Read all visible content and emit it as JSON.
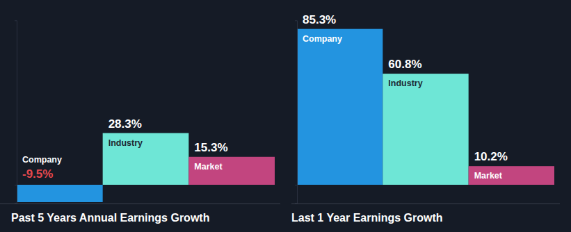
{
  "chart_data": [
    {
      "type": "bar",
      "title": "Past 5 Years Annual Earnings Growth",
      "categories": [
        "Company",
        "Industry",
        "Market"
      ],
      "values": [
        -9.5,
        28.3,
        15.3
      ],
      "value_labels": [
        "-9.5%",
        "28.3%",
        "15.3%"
      ],
      "colors": [
        "#2394e0",
        "#6ee6d6",
        "#c2457f"
      ],
      "ylim": [
        -10,
        90
      ],
      "yticks": [
        0
      ],
      "data_labels": true,
      "tick_labels": false
    },
    {
      "type": "bar",
      "title": "Last 1 Year Earnings Growth",
      "categories": [
        "Company",
        "Industry",
        "Market"
      ],
      "values": [
        85.3,
        60.8,
        10.2
      ],
      "value_labels": [
        "85.3%",
        "60.8%",
        "10.2%"
      ],
      "colors": [
        "#2394e0",
        "#6ee6d6",
        "#c2457f"
      ],
      "ylim": [
        -10,
        90
      ],
      "yticks": [
        0
      ],
      "data_labels": true,
      "tick_labels": false
    }
  ]
}
